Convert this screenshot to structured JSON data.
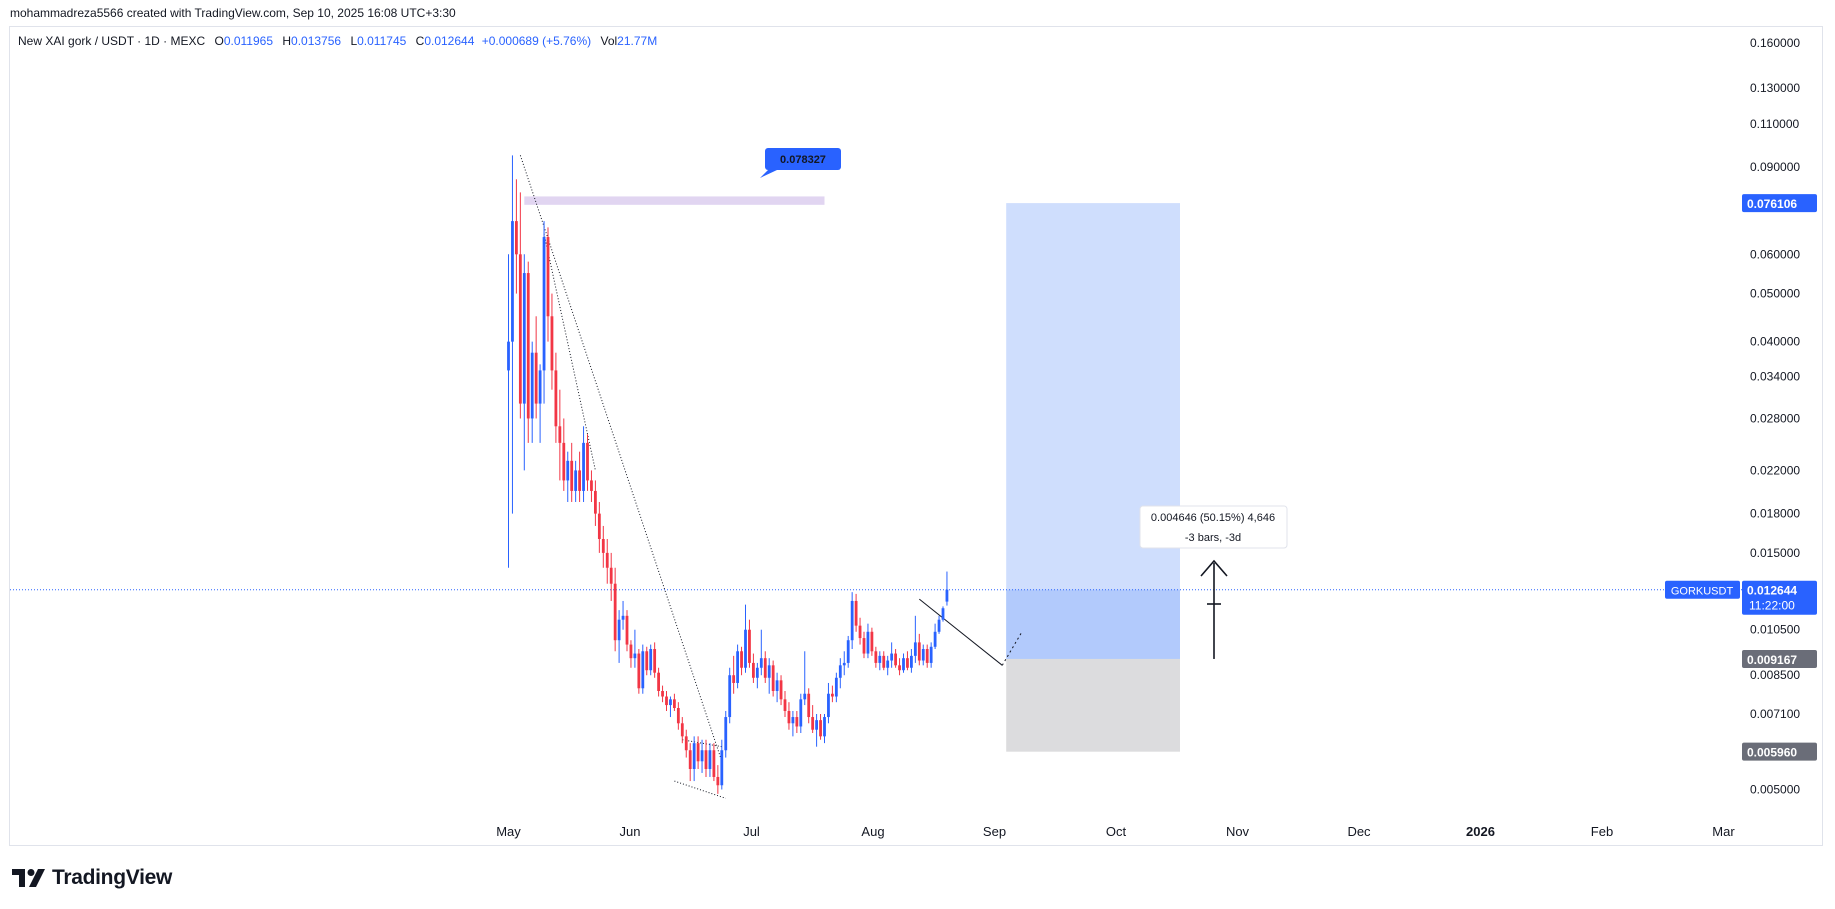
{
  "header": {
    "attribution": "mohammadreza5566 created with TradingView.com, Sep 10, 2025 16:08 UTC+3:30"
  },
  "legend": {
    "symbol": "New XAI gork / USDT · 1D · MEXC",
    "o_label": "O",
    "o_value": "0.011965",
    "h_label": "H",
    "h_value": "0.013756",
    "l_label": "L",
    "l_value": "0.011745",
    "c_label": "C",
    "c_value": "0.012644",
    "change": "+0.000689 (+5.76%)",
    "vol_label": "Vol",
    "vol_value": "21.77M"
  },
  "footer": {
    "logo_text": "TradingView"
  },
  "colors": {
    "up": "#2962ff",
    "down": "#f23645",
    "profit_zone": "#cfdefd",
    "loss_zone": "#dcdcde",
    "resistance_zone": "#e1d5f1",
    "label_blue": "#2962ff",
    "label_gray": "#6a6d78"
  },
  "chart_data": {
    "type": "candlestick",
    "symbol": "GORKUSDT",
    "scale": "log",
    "ylim": [
      0.0043,
      0.17
    ],
    "y_ticks": [
      "0.160000",
      "0.130000",
      "0.110000",
      "0.090000",
      "0.060000",
      "0.050000",
      "0.040000",
      "0.034000",
      "0.028000",
      "0.022000",
      "0.018000",
      "0.015000",
      "0.010500",
      "0.008500",
      "0.007100",
      "0.005000"
    ],
    "x_ticks": [
      "May",
      "Jun",
      "Jul",
      "Aug",
      "Sep",
      "Oct",
      "Nov",
      "Dec",
      "2026",
      "Feb",
      "Mar"
    ],
    "price_labels": {
      "current": "0.012644",
      "countdown": "11:22:00",
      "symbol_tag": "GORKUSDT",
      "target": "0.076106",
      "entry": "0.009167",
      "stop": "0.005960"
    },
    "annotations": {
      "resistance_label": "0.078327",
      "measure_line1": "0.004646 (50.15%) 4,646",
      "measure_line2": "-3 bars, -3d"
    },
    "long_position": {
      "target": 0.076106,
      "entry": 0.009167,
      "stop": 0.00596,
      "start_day": 126,
      "end_day": 170
    },
    "resistance_zone": {
      "high": 0.0785,
      "low": 0.0755,
      "start_day": 4,
      "end_day": 80
    },
    "current_price": 0.012644,
    "candles_start": "May 1",
    "candles": [
      [
        0.035,
        0.06,
        0.014,
        0.04
      ],
      [
        0.04,
        0.095,
        0.018,
        0.07
      ],
      [
        0.07,
        0.085,
        0.05,
        0.06
      ],
      [
        0.06,
        0.08,
        0.028,
        0.03
      ],
      [
        0.03,
        0.06,
        0.022,
        0.055
      ],
      [
        0.055,
        0.058,
        0.025,
        0.028
      ],
      [
        0.028,
        0.04,
        0.025,
        0.038
      ],
      [
        0.038,
        0.045,
        0.028,
        0.03
      ],
      [
        0.03,
        0.036,
        0.025,
        0.035
      ],
      [
        0.035,
        0.07,
        0.03,
        0.065
      ],
      [
        0.065,
        0.068,
        0.04,
        0.045
      ],
      [
        0.045,
        0.05,
        0.032,
        0.035
      ],
      [
        0.035,
        0.038,
        0.025,
        0.027
      ],
      [
        0.027,
        0.032,
        0.021,
        0.025
      ],
      [
        0.025,
        0.028,
        0.02,
        0.021
      ],
      [
        0.021,
        0.024,
        0.019,
        0.023
      ],
      [
        0.023,
        0.025,
        0.019,
        0.02
      ],
      [
        0.02,
        0.023,
        0.019,
        0.022
      ],
      [
        0.022,
        0.024,
        0.019,
        0.02
      ],
      [
        0.02,
        0.027,
        0.019,
        0.025
      ],
      [
        0.025,
        0.026,
        0.02,
        0.021
      ],
      [
        0.021,
        0.022,
        0.019,
        0.02
      ],
      [
        0.02,
        0.021,
        0.017,
        0.018
      ],
      [
        0.018,
        0.019,
        0.015,
        0.016
      ],
      [
        0.016,
        0.017,
        0.014,
        0.015
      ],
      [
        0.015,
        0.016,
        0.013,
        0.014
      ],
      [
        0.014,
        0.015,
        0.012,
        0.013
      ],
      [
        0.013,
        0.014,
        0.0095,
        0.01
      ],
      [
        0.01,
        0.0115,
        0.009,
        0.011
      ],
      [
        0.011,
        0.012,
        0.0105,
        0.0112
      ],
      [
        0.0112,
        0.0115,
        0.0095,
        0.0098
      ],
      [
        0.0098,
        0.01,
        0.0088,
        0.0092
      ],
      [
        0.0092,
        0.0105,
        0.0088,
        0.0094
      ],
      [
        0.0094,
        0.0096,
        0.0078,
        0.008
      ],
      [
        0.008,
        0.0098,
        0.0078,
        0.0095
      ],
      [
        0.0095,
        0.0097,
        0.0085,
        0.0087
      ],
      [
        0.0087,
        0.0098,
        0.0085,
        0.0096
      ],
      [
        0.0096,
        0.0099,
        0.0084,
        0.0086
      ],
      [
        0.0086,
        0.0088,
        0.0077,
        0.0079
      ],
      [
        0.0079,
        0.0081,
        0.0075,
        0.0077
      ],
      [
        0.0077,
        0.0079,
        0.0072,
        0.0074
      ],
      [
        0.0074,
        0.0077,
        0.007,
        0.0076
      ],
      [
        0.0076,
        0.0078,
        0.0072,
        0.0073
      ],
      [
        0.0073,
        0.0075,
        0.0066,
        0.0068
      ],
      [
        0.0068,
        0.007,
        0.0062,
        0.0064
      ],
      [
        0.0064,
        0.0066,
        0.0058,
        0.006
      ],
      [
        0.006,
        0.0062,
        0.0052,
        0.0055
      ],
      [
        0.0055,
        0.0064,
        0.0052,
        0.0062
      ],
      [
        0.0062,
        0.0064,
        0.0055,
        0.0057
      ],
      [
        0.0057,
        0.0063,
        0.0054,
        0.006
      ],
      [
        0.006,
        0.0063,
        0.0053,
        0.0055
      ],
      [
        0.0055,
        0.0062,
        0.0053,
        0.006
      ],
      [
        0.006,
        0.0062,
        0.0052,
        0.0053
      ],
      [
        0.0053,
        0.0056,
        0.0049,
        0.0051
      ],
      [
        0.0051,
        0.0063,
        0.005,
        0.006
      ],
      [
        0.006,
        0.0072,
        0.0058,
        0.007
      ],
      [
        0.007,
        0.0088,
        0.0068,
        0.0085
      ],
      [
        0.0085,
        0.0093,
        0.0078,
        0.0082
      ],
      [
        0.0082,
        0.0098,
        0.008,
        0.0095
      ],
      [
        0.0095,
        0.0097,
        0.0085,
        0.0088
      ],
      [
        0.0088,
        0.0118,
        0.0086,
        0.0105
      ],
      [
        0.0105,
        0.011,
        0.0088,
        0.009
      ],
      [
        0.009,
        0.0094,
        0.0082,
        0.0084
      ],
      [
        0.0084,
        0.009,
        0.008,
        0.0088
      ],
      [
        0.0088,
        0.0105,
        0.0085,
        0.0092
      ],
      [
        0.0092,
        0.0095,
        0.0082,
        0.0084
      ],
      [
        0.0084,
        0.0092,
        0.0078,
        0.0089
      ],
      [
        0.0089,
        0.0091,
        0.0077,
        0.0079
      ],
      [
        0.0079,
        0.0086,
        0.0075,
        0.0083
      ],
      [
        0.0083,
        0.0085,
        0.0074,
        0.0076
      ],
      [
        0.0076,
        0.0079,
        0.007,
        0.0072
      ],
      [
        0.0072,
        0.0075,
        0.0066,
        0.0068
      ],
      [
        0.0068,
        0.0072,
        0.0064,
        0.007
      ],
      [
        0.007,
        0.0072,
        0.0065,
        0.0067
      ],
      [
        0.0067,
        0.0078,
        0.0065,
        0.0076
      ],
      [
        0.0076,
        0.0095,
        0.0074,
        0.0078
      ],
      [
        0.0078,
        0.008,
        0.0068,
        0.007
      ],
      [
        0.007,
        0.0074,
        0.0065,
        0.0066
      ],
      [
        0.0066,
        0.0071,
        0.0061,
        0.0069
      ],
      [
        0.0069,
        0.0071,
        0.0063,
        0.0064
      ],
      [
        0.0064,
        0.0071,
        0.0062,
        0.007
      ],
      [
        0.007,
        0.0082,
        0.0068,
        0.0078
      ],
      [
        0.0078,
        0.0081,
        0.0075,
        0.0077
      ],
      [
        0.0077,
        0.0086,
        0.0075,
        0.0084
      ],
      [
        0.0084,
        0.0092,
        0.008,
        0.0089
      ],
      [
        0.0089,
        0.0095,
        0.0085,
        0.009
      ],
      [
        0.009,
        0.0102,
        0.0088,
        0.01
      ],
      [
        0.01,
        0.0125,
        0.0096,
        0.012
      ],
      [
        0.012,
        0.0124,
        0.0104,
        0.0107
      ],
      [
        0.0107,
        0.0111,
        0.0098,
        0.0101
      ],
      [
        0.0101,
        0.0104,
        0.0092,
        0.0094
      ],
      [
        0.0094,
        0.0108,
        0.0092,
        0.0104
      ],
      [
        0.0104,
        0.0106,
        0.0093,
        0.0095
      ],
      [
        0.0095,
        0.0097,
        0.0088,
        0.009
      ],
      [
        0.009,
        0.0095,
        0.0087,
        0.0093
      ],
      [
        0.0093,
        0.0095,
        0.0087,
        0.0088
      ],
      [
        0.0088,
        0.0093,
        0.0085,
        0.0091
      ],
      [
        0.0091,
        0.0099,
        0.0088,
        0.0094
      ],
      [
        0.0094,
        0.0096,
        0.0088,
        0.0089
      ],
      [
        0.0089,
        0.0092,
        0.0085,
        0.0087
      ],
      [
        0.0087,
        0.0094,
        0.0086,
        0.0092
      ],
      [
        0.0092,
        0.0095,
        0.0087,
        0.0088
      ],
      [
        0.0088,
        0.0096,
        0.0086,
        0.0093
      ],
      [
        0.0093,
        0.0112,
        0.009,
        0.0099
      ],
      [
        0.0099,
        0.0103,
        0.0089,
        0.0091
      ],
      [
        0.0091,
        0.0098,
        0.0089,
        0.0096
      ],
      [
        0.0096,
        0.0098,
        0.0088,
        0.009
      ],
      [
        0.009,
        0.0099,
        0.0088,
        0.0097
      ],
      [
        0.0097,
        0.0108,
        0.0096,
        0.0104
      ],
      [
        0.0104,
        0.0112,
        0.0103,
        0.011
      ],
      [
        0.011,
        0.0117,
        0.0109,
        0.0116
      ],
      [
        0.011965,
        0.013756,
        0.011745,
        0.012644
      ]
    ]
  }
}
